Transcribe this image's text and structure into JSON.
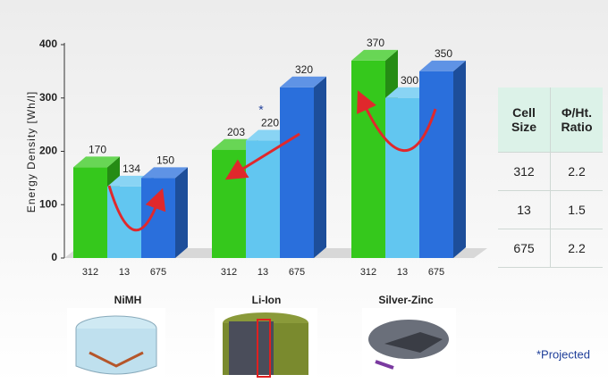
{
  "chart_data": {
    "type": "bar3d",
    "y_label": "Energy Density [Wh/l]",
    "groups": [
      "NiMH",
      "Li-Ion",
      "Silver-Zinc"
    ],
    "series": [
      {
        "name": "312",
        "color": "#35c81c",
        "values": [
          170,
          203,
          370
        ]
      },
      {
        "name": "13",
        "color": "#62c6f0",
        "values": [
          134,
          220,
          300
        ]
      },
      {
        "name": "675",
        "color": "#2a6fdc",
        "values": [
          150,
          320,
          350
        ]
      }
    ],
    "ylim": [
      0,
      400
    ],
    "yticks": [
      0,
      100,
      200,
      300,
      400
    ],
    "annotation": "*",
    "footnote": "*Projected"
  },
  "table": {
    "header": [
      "Cell Size",
      "Φ/Ht. Ratio"
    ],
    "rows": [
      [
        "312",
        "2.2"
      ],
      [
        "13",
        "1.5"
      ],
      [
        "675",
        "2.2"
      ]
    ]
  }
}
